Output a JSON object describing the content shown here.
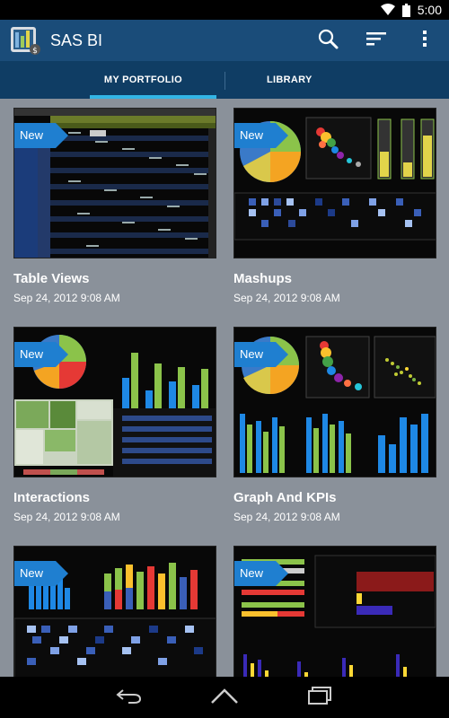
{
  "status_bar": {
    "time": "5:00"
  },
  "app": {
    "title": "SAS BI"
  },
  "action_icons": [
    "search-icon",
    "sort-icon",
    "overflow-menu-icon"
  ],
  "tabs": [
    {
      "label": "MY PORTFOLIO",
      "active": true
    },
    {
      "label": "LIBRARY",
      "active": false
    }
  ],
  "cards": [
    {
      "title": "Table Views",
      "date": "Sep 24, 2012 9:08 AM",
      "badge": "New"
    },
    {
      "title": "Mashups",
      "date": "Sep 24, 2012 9:08 AM",
      "badge": "New"
    },
    {
      "title": "Interactions",
      "date": "Sep 24, 2012 9:08 AM",
      "badge": "New"
    },
    {
      "title": "Graph And KPIs",
      "date": "Sep 24, 2012 9:08 AM",
      "badge": "New"
    },
    {
      "title": "",
      "date": "",
      "badge": "New"
    },
    {
      "title": "",
      "date": "",
      "badge": "New"
    }
  ],
  "nav_icons": [
    "back-icon",
    "home-icon",
    "recent-apps-icon"
  ],
  "colors": {
    "action_bar": "#1a4c79",
    "tab_bar": "#0f3d64",
    "tab_indicator": "#33b5e5",
    "content_bg": "#8a919a",
    "badge": "#1f7fd0"
  }
}
